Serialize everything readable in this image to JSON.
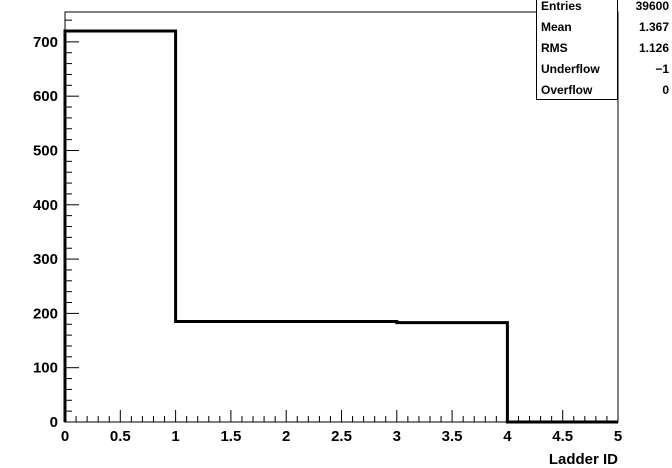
{
  "chart_data": {
    "type": "histogram",
    "xlabel": "Ladder ID",
    "ylabel": "",
    "title": "",
    "xlim": [
      0,
      5
    ],
    "ylim": [
      0,
      755
    ],
    "grid": false,
    "bins": [
      {
        "x0": 0,
        "x1": 1,
        "value": 720
      },
      {
        "x0": 1,
        "x1": 2,
        "value": 185
      },
      {
        "x0": 2,
        "x1": 3,
        "value": 185
      },
      {
        "x0": 3,
        "x1": 4,
        "value": 183
      },
      {
        "x0": 4,
        "x1": 5,
        "value": 0
      }
    ],
    "xticks": [
      {
        "value": 0,
        "label": "0"
      },
      {
        "value": 0.5,
        "label": "0.5"
      },
      {
        "value": 1,
        "label": "1"
      },
      {
        "value": 1.5,
        "label": "1.5"
      },
      {
        "value": 2,
        "label": "2"
      },
      {
        "value": 2.5,
        "label": "2.5"
      },
      {
        "value": 3,
        "label": "3"
      },
      {
        "value": 3.5,
        "label": "3.5"
      },
      {
        "value": 4,
        "label": "4"
      },
      {
        "value": 4.5,
        "label": "4.5"
      },
      {
        "value": 5,
        "label": "5"
      }
    ],
    "yticks": [
      {
        "value": 0,
        "label": "0"
      },
      {
        "value": 100,
        "label": "100"
      },
      {
        "value": 200,
        "label": "200"
      },
      {
        "value": 300,
        "label": "300"
      },
      {
        "value": 400,
        "label": "400"
      },
      {
        "value": 500,
        "label": "500"
      },
      {
        "value": 600,
        "label": "600"
      },
      {
        "value": 700,
        "label": "700"
      }
    ],
    "stats": [
      {
        "name": "Entries",
        "value": "39600"
      },
      {
        "name": "Mean",
        "value": "1.367"
      },
      {
        "name": "RMS",
        "value": "1.126"
      },
      {
        "name": "Underflow",
        "value": "−1"
      },
      {
        "name": "Overflow",
        "value": "0"
      }
    ],
    "stats_placement": "top-right"
  }
}
